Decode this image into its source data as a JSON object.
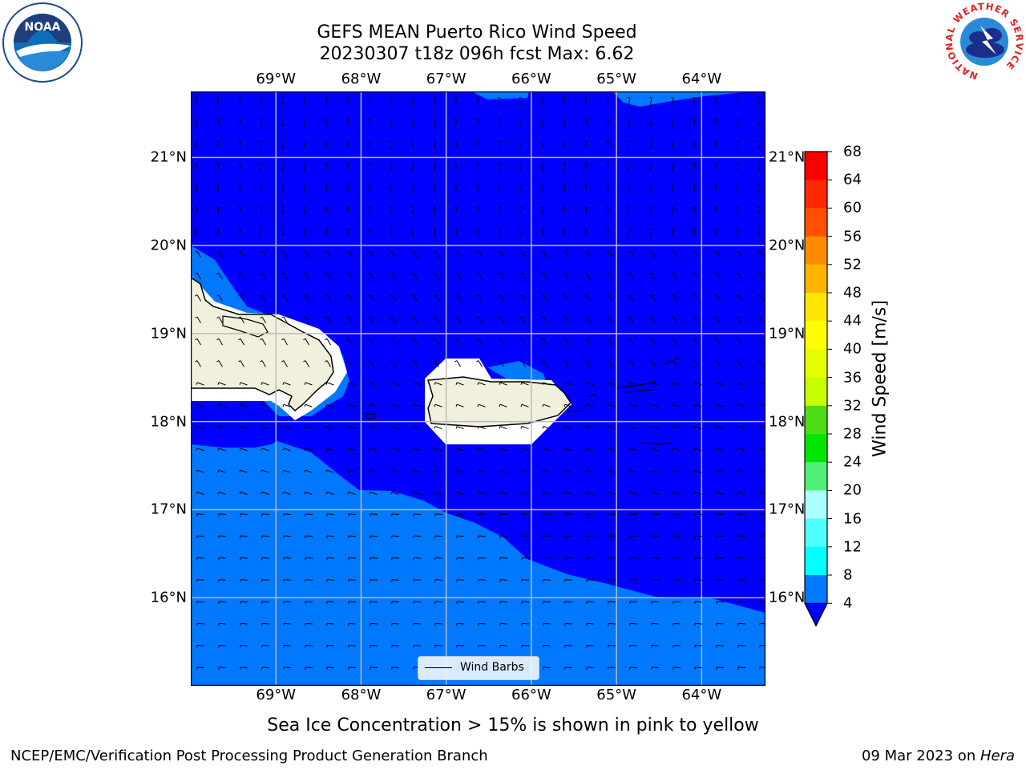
{
  "title_line1": "GEFS MEAN Puerto Rico Wind Speed",
  "title_line2": "20230307 t18z 096h fcst   Max: 6.62",
  "logos": {
    "noaa_text": "NOAA",
    "nws_ring_text": "NATIONAL WEATHER SERVICE"
  },
  "map": {
    "lon_range": [
      -70.0,
      -63.25
    ],
    "lat_range": [
      15.0,
      21.75
    ],
    "lon_ticks": [
      "69°W",
      "68°W",
      "67°W",
      "66°W",
      "65°W",
      "64°W"
    ],
    "lon_tick_values": [
      -69,
      -68,
      -67,
      -66,
      -65,
      -64
    ],
    "lat_ticks": [
      "21°N",
      "20°N",
      "19°N",
      "18°N",
      "17°N",
      "16°N"
    ],
    "lat_tick_values": [
      21,
      20,
      19,
      18,
      17,
      16
    ],
    "ocean_colors": {
      "4-8": "#0078ff",
      "below_4": "#0000ff"
    },
    "land_color": "#f0f0dc",
    "legend_label": "Wind Barbs"
  },
  "colorbar": {
    "label": "Wind Speed [m/s]",
    "ticks": [
      "68",
      "64",
      "60",
      "56",
      "52",
      "48",
      "44",
      "40",
      "36",
      "32",
      "28",
      "24",
      "20",
      "16",
      "12",
      "8",
      "4"
    ],
    "bins": [
      {
        "from": 64,
        "to": 68,
        "color": "#ff0000"
      },
      {
        "from": 60,
        "to": 64,
        "color": "#ff2800"
      },
      {
        "from": 56,
        "to": 60,
        "color": "#ff5000"
      },
      {
        "from": 52,
        "to": 56,
        "color": "#ff8c00"
      },
      {
        "from": 48,
        "to": 52,
        "color": "#ffb400"
      },
      {
        "from": 44,
        "to": 48,
        "color": "#ffe600"
      },
      {
        "from": 40,
        "to": 44,
        "color": "#ffff00"
      },
      {
        "from": 36,
        "to": 40,
        "color": "#e6ff00"
      },
      {
        "from": 32,
        "to": 36,
        "color": "#c8ff00"
      },
      {
        "from": 28,
        "to": 32,
        "color": "#50dc14"
      },
      {
        "from": 24,
        "to": 28,
        "color": "#00e600"
      },
      {
        "from": 20,
        "to": 24,
        "color": "#50f078"
      },
      {
        "from": 16,
        "to": 20,
        "color": "#aaffff"
      },
      {
        "from": 12,
        "to": 16,
        "color": "#50ffff"
      },
      {
        "from": 8,
        "to": 12,
        "color": "#00ffff"
      },
      {
        "from": 4,
        "to": 8,
        "color": "#0078ff"
      }
    ],
    "under_color": "#0000ff"
  },
  "footnote": "Sea Ice Concentration > 15% is shown in pink to yellow",
  "credit": "NCEP/EMC/Verification Post Processing Product Generation Branch",
  "date_prefix": "09 Mar 2023 on ",
  "date_host": "Hera"
}
